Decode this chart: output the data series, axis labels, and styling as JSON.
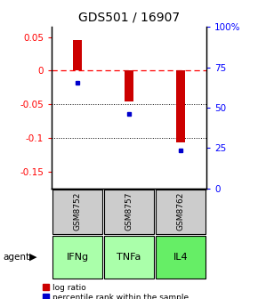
{
  "title": "GDS501 / 16907",
  "samples": [
    "GSM8752",
    "GSM8757",
    "GSM8762"
  ],
  "agents": [
    "IFNg",
    "TNFa",
    "IL4"
  ],
  "log_ratios": [
    0.045,
    -0.046,
    -0.107
  ],
  "percentile_ranks": [
    0.655,
    0.46,
    0.235
  ],
  "bar_color": "#cc0000",
  "dot_color": "#0000cc",
  "ylim_left": [
    -0.175,
    0.065
  ],
  "yticks_left": [
    0.05,
    0.0,
    -0.05,
    -0.1,
    -0.15
  ],
  "yticks_right": [
    1.0,
    0.75,
    0.5,
    0.25,
    0.0
  ],
  "ytick_labels_left": [
    "0.05",
    "0",
    "-0.05",
    "-0.1",
    "-0.15"
  ],
  "ytick_labels_right": [
    "100%",
    "75",
    "50",
    "25",
    "0"
  ],
  "dotted_hlines": [
    -0.05,
    -0.1
  ],
  "sample_bg_color": "#cccccc",
  "agent_colors": [
    "#aaffaa",
    "#aaffaa",
    "#66ee66"
  ],
  "legend_items": [
    "log ratio",
    "percentile rank within the sample"
  ]
}
